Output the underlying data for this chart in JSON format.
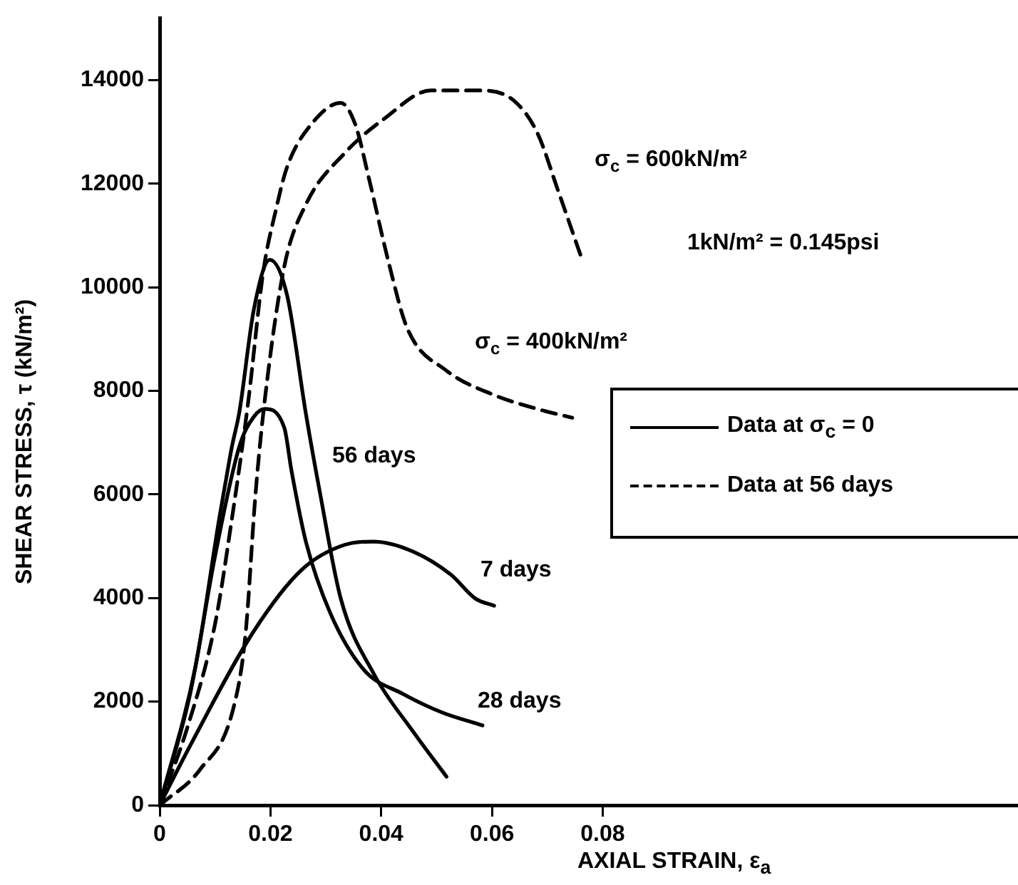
{
  "chart_data": {
    "type": "line",
    "xlabel": "AXIAL  STRAIN, ε$_{a}$",
    "ylabel": "SHEAR  STRESS, τ (kN/m²)",
    "xlim": [
      0,
      0.155
    ],
    "ylim": [
      0,
      15200
    ],
    "xticks": [
      0,
      0.02,
      0.04,
      0.06,
      0.08
    ],
    "yticks": [
      0,
      2000,
      4000,
      6000,
      8000,
      10000,
      12000,
      14000
    ],
    "grid": false,
    "legend": false,
    "marker": "none",
    "series": [
      {
        "name": "56 days",
        "color": "#000000",
        "line_style": "solid",
        "x": [
          0,
          0.0065,
          0.0107,
          0.012,
          0.013,
          0.0144,
          0.017,
          0.0199,
          0.023,
          0.0264,
          0.029,
          0.0327,
          0.0387,
          0.0457,
          0.0518
        ],
        "values": [
          0,
          2700,
          5500,
          6300,
          6900,
          7600,
          9570,
          10530,
          9850,
          7560,
          6000,
          3990,
          2530,
          1430,
          550
        ]
      },
      {
        "name": "28 days",
        "color": "#000000",
        "line_style": "solid",
        "x": [
          0,
          0.0055,
          0.01,
          0.0144,
          0.017,
          0.019,
          0.0225,
          0.0238,
          0.0264,
          0.0308,
          0.0369,
          0.0439,
          0.051,
          0.0583
        ],
        "values": [
          0,
          2150,
          4810,
          6930,
          7500,
          7650,
          7290,
          6460,
          5090,
          3710,
          2610,
          2150,
          1790,
          1540
        ]
      },
      {
        "name": "7 days",
        "color": "#000000",
        "line_style": "solid",
        "x": [
          0,
          0.0055,
          0.017,
          0.0256,
          0.0335,
          0.0387,
          0.0457,
          0.0526,
          0.057,
          0.0604
        ],
        "values": [
          0,
          1150,
          3360,
          4540,
          5030,
          5090,
          4900,
          4450,
          3990,
          3850
        ]
      },
      {
        "name": "σ$_{c}$ = 400kN/m²",
        "color": "#000000",
        "line_style": "dashed",
        "x": [
          0,
          0.005,
          0.01,
          0.013,
          0.016,
          0.0187,
          0.021,
          0.023,
          0.0274,
          0.0327,
          0.0353,
          0.0379,
          0.0413,
          0.0447,
          0.0518,
          0.0604,
          0.0682,
          0.0745
        ],
        "values": [
          0,
          1500,
          3500,
          5500,
          7800,
          10300,
          11500,
          12320,
          13150,
          13560,
          13150,
          12050,
          10500,
          9210,
          8390,
          7920,
          7650,
          7480
        ]
      },
      {
        "name": "σ$_{c}$ = 600kN/m²",
        "color": "#000000",
        "line_style": "dashed",
        "x": [
          0,
          0.0073,
          0.0133,
          0.0155,
          0.0173,
          0.019,
          0.0225,
          0.0264,
          0.0335,
          0.0405,
          0.049,
          0.0578,
          0.064,
          0.0682,
          0.0719,
          0.0761
        ],
        "values": [
          0,
          690,
          1870,
          3300,
          6000,
          7840,
          10400,
          11600,
          12600,
          13250,
          13800,
          13800,
          13600,
          12980,
          11880,
          10590
        ]
      }
    ],
    "annotations": [
      "1kN/m² = 0.145psi",
      "Data at σ$_{c}$ = 0",
      "Data at 56 days"
    ]
  }
}
